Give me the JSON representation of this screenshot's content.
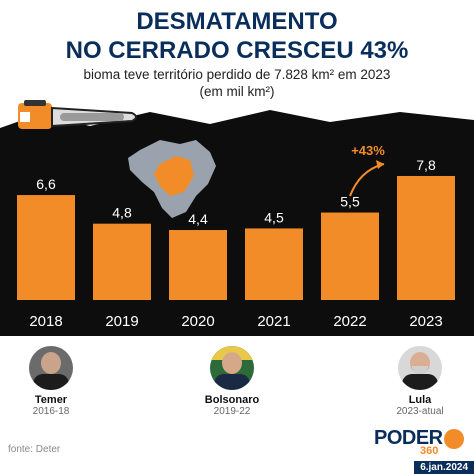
{
  "header": {
    "title_line1": "DESMATAMENTO",
    "title_line2": "NO CERRADO CRESCEU 43%",
    "subtitle_line1": "bioma teve território perdido de 7.828 km² em 2023",
    "subtitle_line2": "(em mil km²)"
  },
  "chart_data": {
    "type": "bar",
    "categories": [
      "2018",
      "2019",
      "2020",
      "2021",
      "2022",
      "2023"
    ],
    "values": [
      6.6,
      4.8,
      4.4,
      4.5,
      5.5,
      7.8
    ],
    "value_labels": [
      "6,6",
      "4,8",
      "4,4",
      "4,5",
      "5,5",
      "7,8"
    ],
    "annotation": "+43%",
    "bar_color": "#f28c28",
    "background_color": "#0d0d0d",
    "ylim": [
      0,
      8.5
    ]
  },
  "presidents": [
    {
      "name": "Temer",
      "years": "2016-18"
    },
    {
      "name": "Bolsonaro",
      "years": "2019-22"
    },
    {
      "name": "Lula",
      "years": "2023-atual"
    }
  ],
  "footer": {
    "source": "fonte: Deter",
    "logo_text": "PODER",
    "logo_number": "360",
    "date": "6.jan.2024"
  }
}
